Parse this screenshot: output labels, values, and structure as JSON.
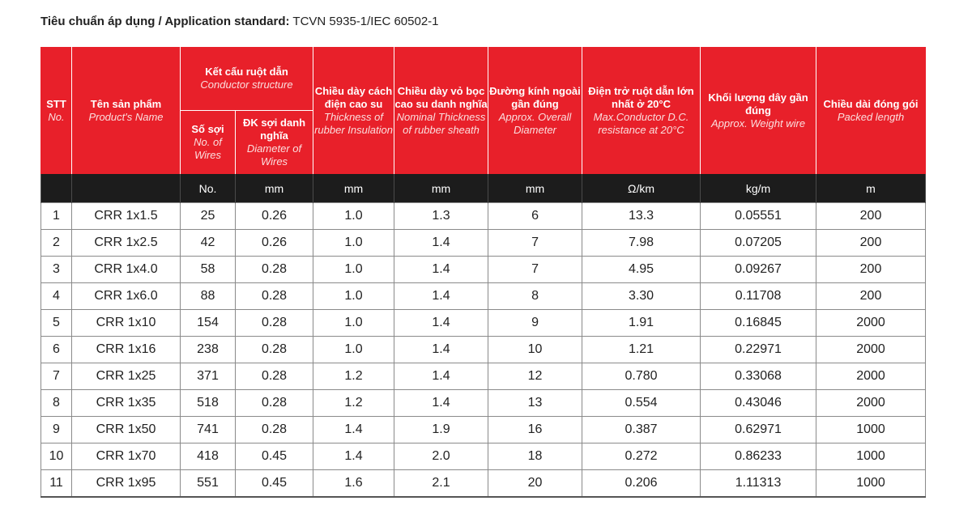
{
  "standard": {
    "label": "Tiêu chuẩn áp dụng / Application standard:",
    "value": "TCVN 5935-1/IEC 60502-1"
  },
  "headers": {
    "stt_vi": "STT",
    "stt_en": "No.",
    "name_vi": "Tên sản phẩm",
    "name_en": "Product's Name",
    "conductor_vi": "Kết cấu ruột dẫn",
    "conductor_en": "Conductor structure",
    "wires_vi": "Số sợi",
    "wires_en": "No. of Wires",
    "diameter_vi": "ĐK sợi danh nghĩa",
    "diameter_en": "Diameter of Wires",
    "insulation_vi": "Chiều dày cách điện cao su",
    "insulation_en": "Thickness of rubber Insulation",
    "sheath_vi": "Chiều dày vỏ bọc cao su danh nghĩa",
    "sheath_en": "Nominal Thickness of rubber sheath",
    "overall_vi": "Đường kính ngoài gần đúng",
    "overall_en": "Approx. Overall Diameter",
    "resistance_vi": "Điện trở ruột dẫn lớn nhất ở 20°C",
    "resistance_en": "Max.Conductor D.C. resistance at 20°C",
    "weight_vi": "Khối lượng dây gần đúng",
    "weight_en": "Approx. Weight wire",
    "length_vi": "Chiều dài đóng gói",
    "length_en": "Packed length"
  },
  "units": [
    "",
    "",
    "No.",
    "mm",
    "mm",
    "mm",
    "mm",
    "Ω/km",
    "kg/m",
    "m"
  ],
  "rows": [
    [
      "1",
      "CRR 1x1.5",
      "25",
      "0.26",
      "1.0",
      "1.3",
      "6",
      "13.3",
      "0.05551",
      "200"
    ],
    [
      "2",
      "CRR 1x2.5",
      "42",
      "0.26",
      "1.0",
      "1.4",
      "7",
      "7.98",
      "0.07205",
      "200"
    ],
    [
      "3",
      "CRR 1x4.0",
      "58",
      "0.28",
      "1.0",
      "1.4",
      "7",
      "4.95",
      "0.09267",
      "200"
    ],
    [
      "4",
      "CRR 1x6.0",
      "88",
      "0.28",
      "1.0",
      "1.4",
      "8",
      "3.30",
      "0.11708",
      "200"
    ],
    [
      "5",
      "CRR 1x10",
      "154",
      "0.28",
      "1.0",
      "1.4",
      "9",
      "1.91",
      "0.16845",
      "2000"
    ],
    [
      "6",
      "CRR 1x16",
      "238",
      "0.28",
      "1.0",
      "1.4",
      "10",
      "1.21",
      "0.22971",
      "2000"
    ],
    [
      "7",
      "CRR 1x25",
      "371",
      "0.28",
      "1.2",
      "1.4",
      "12",
      "0.780",
      "0.33068",
      "2000"
    ],
    [
      "8",
      "CRR 1x35",
      "518",
      "0.28",
      "1.2",
      "1.4",
      "13",
      "0.554",
      "0.43046",
      "2000"
    ],
    [
      "9",
      "CRR 1x50",
      "741",
      "0.28",
      "1.4",
      "1.9",
      "16",
      "0.387",
      "0.62971",
      "1000"
    ],
    [
      "10",
      "CRR 1x70",
      "418",
      "0.45",
      "1.4",
      "2.0",
      "18",
      "0.272",
      "0.86233",
      "1000"
    ],
    [
      "11",
      "CRR 1x95",
      "551",
      "0.45",
      "1.6",
      "2.1",
      "20",
      "0.206",
      "1.11313",
      "1000"
    ]
  ]
}
